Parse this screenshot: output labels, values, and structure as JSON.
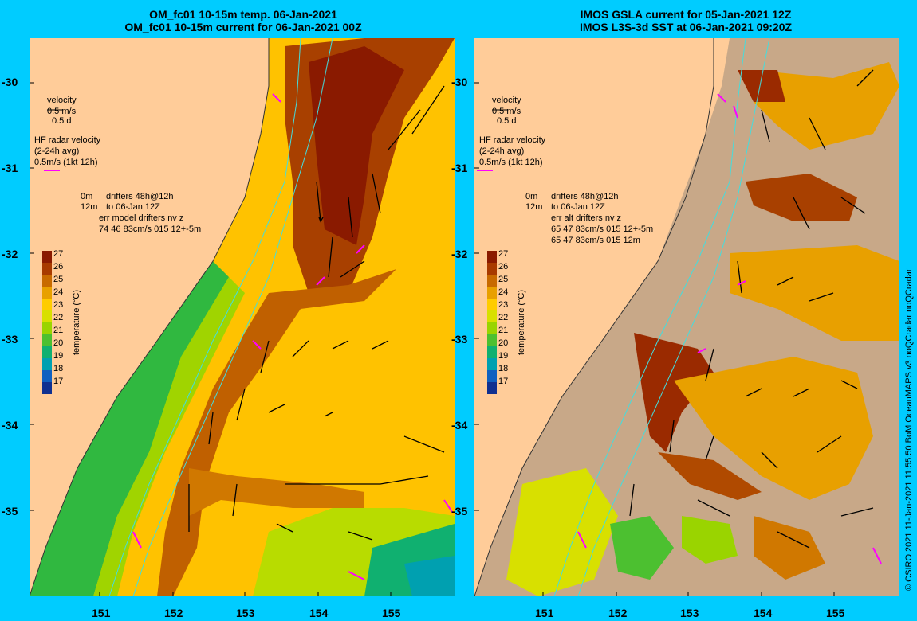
{
  "left_panel": {
    "title_line1": "OM_fc01 10-15m temp. 06-Jan-2021",
    "title_line2": "OM_fc01 10-15m current for 06-Jan-2021 00Z",
    "legend": {
      "velocity": "velocity",
      "scale1": "0.5 m/s",
      "scale2": "0.5 d",
      "hf_radar_1": "HF radar velocity",
      "hf_radar_2": "(2-24h avg)",
      "hf_radar_3": "0.5m/s (1kt 12h)",
      "drifters_1a": "0m",
      "drifters_1b": "drifters 48h@12h",
      "drifters_2a": "12m",
      "drifters_2b": "to 06-Jan 12Z",
      "err_1": "err model drifters nv z",
      "err_2": "74 46 83cm/s 015 12+-5m"
    },
    "colorbar_label": "temperature (°C)"
  },
  "right_panel": {
    "title_line1": "IMOS GSLA current for 05-Jan-2021 12Z",
    "title_line2": "IMOS L3S-3d SST at 06-Jan-2021 09:20Z",
    "legend": {
      "velocity": "velocity",
      "scale1": "0.5 m/s",
      "scale2": "0.5 d",
      "hf_radar_1": "HF radar velocity",
      "hf_radar_2": "(2-24h avg)",
      "hf_radar_3": "0.5m/s (1kt 12h)",
      "drifters_1a": "0m",
      "drifters_1b": "drifters 48h@12h",
      "drifters_2a": "12m",
      "drifters_2b": "to 06-Jan 12Z",
      "err_1": "err alt drifters nv z",
      "err_2": "65 47 83cm/s 015 12+-5m",
      "err_3": "65 47 83cm/s 015 12m"
    },
    "colorbar_label": "temperature (°C)"
  },
  "colorbar_ticks": [
    "27",
    "26",
    "25",
    "24",
    "23",
    "22",
    "21",
    "20",
    "19",
    "18",
    "17"
  ],
  "colorbar_colors": [
    "#8a1a00",
    "#a83a00",
    "#c86a00",
    "#e8a000",
    "#ffcc00",
    "#d8e000",
    "#9ad400",
    "#4cc030",
    "#10b070",
    "#00a0b0",
    "#1060c0",
    "#103090"
  ],
  "lat_ticks": [
    "-30",
    "-31",
    "-32",
    "-33",
    "-34",
    "-35"
  ],
  "lon_ticks": [
    "151",
    "152",
    "153",
    "154",
    "155"
  ],
  "credit": "© CSIRO 2021  11-Jan-2021 11:55:50 BoM OceanMAPS v3 noQCradar noQCradar",
  "colors": {
    "land": "#ffcc99",
    "cloud_mask": "#c8a888",
    "background": "#00ccff",
    "drifter": "#ff00ff",
    "isobath": "#44dddd"
  }
}
